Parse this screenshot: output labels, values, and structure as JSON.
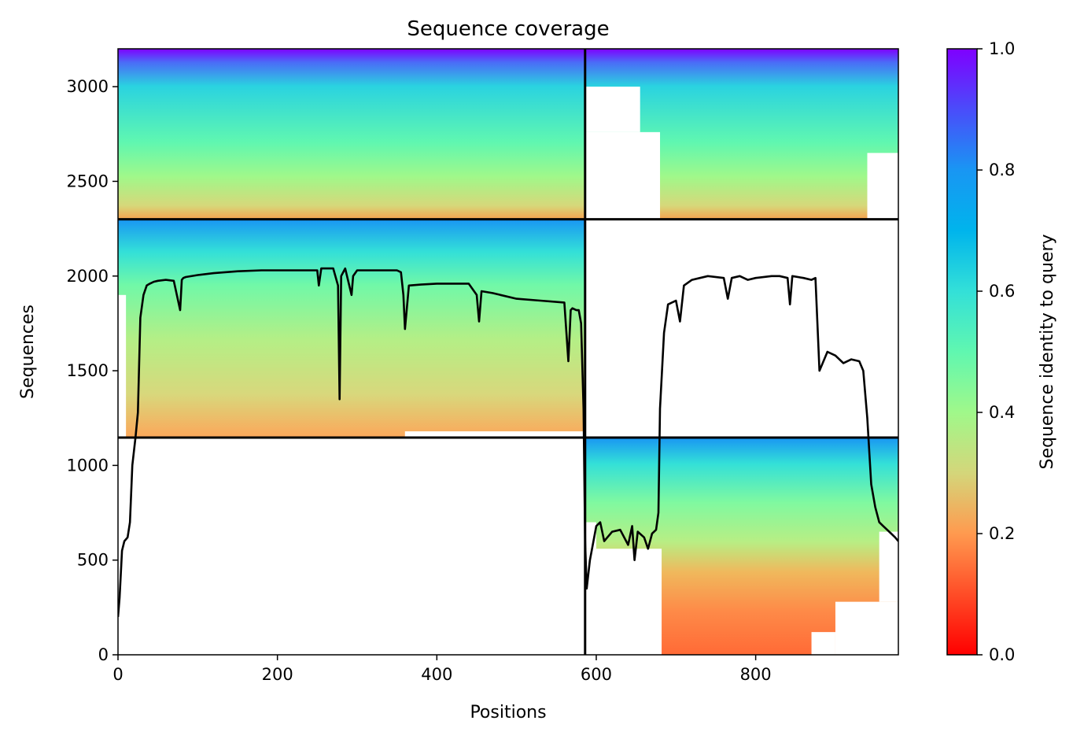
{
  "chart_data": {
    "type": "heatmap",
    "title": "Sequence coverage",
    "xlabel": "Positions",
    "ylabel": "Sequences",
    "xlim": [
      0,
      979
    ],
    "ylim": [
      0,
      3200
    ],
    "x_ticks": [
      "0",
      "200",
      "400",
      "600",
      "800"
    ],
    "x_tick_values": [
      0,
      200,
      400,
      600,
      800
    ],
    "y_ticks": [
      "0",
      "500",
      "1000",
      "1500",
      "2000",
      "2500",
      "3000"
    ],
    "y_tick_values": [
      0,
      500,
      1000,
      1500,
      2000,
      2500,
      3000
    ],
    "colorbar": {
      "label": "Sequence identity to query",
      "range": [
        0.0,
        1.0
      ],
      "ticks": [
        "0.0",
        "0.2",
        "0.4",
        "0.6",
        "0.8",
        "1.0"
      ],
      "tick_values": [
        0.0,
        0.2,
        0.4,
        0.6,
        0.8,
        1.0
      ],
      "colormap": "rainbow_r"
    },
    "divider_positions": [
      586
    ],
    "divider_sequences": [
      1147,
      2300
    ],
    "blocks": [
      {
        "x": [
          0,
          586
        ],
        "y": [
          2300,
          3200
        ],
        "identity_top": 1.0,
        "identity_bottom": 0.25
      },
      {
        "x": [
          586,
          979
        ],
        "y": [
          2300,
          3200
        ],
        "identity_top": 1.0,
        "identity_bottom": 0.3
      },
      {
        "x": [
          0,
          586
        ],
        "y": [
          1147,
          2300
        ],
        "identity_top": 0.8,
        "identity_bottom": 0.22
      },
      {
        "x": [
          586,
          979
        ],
        "y": [
          0,
          1147
        ],
        "identity_top": 0.8,
        "identity_bottom": 0.15
      }
    ],
    "coverage_line": {
      "x": [
        0,
        2,
        5,
        8,
        12,
        15,
        18,
        22,
        25,
        28,
        32,
        36,
        40,
        45,
        50,
        60,
        70,
        78,
        80,
        82,
        85,
        100,
        120,
        150,
        180,
        200,
        220,
        250,
        252,
        255,
        270,
        276,
        278,
        280,
        285,
        293,
        295,
        300,
        320,
        350,
        355,
        358,
        360,
        365,
        380,
        400,
        440,
        450,
        453,
        456,
        470,
        500,
        530,
        560,
        565,
        568,
        570,
        575,
        578,
        581,
        584,
        586,
        588,
        592,
        600,
        605,
        610,
        620,
        630,
        640,
        645,
        648,
        652,
        660,
        665,
        670,
        675,
        678,
        680,
        685,
        690,
        700,
        705,
        710,
        720,
        740,
        760,
        765,
        770,
        780,
        790,
        800,
        820,
        830,
        840,
        843,
        846,
        860,
        870,
        875,
        880,
        885,
        890,
        900,
        910,
        920,
        930,
        935,
        940,
        945,
        950,
        955,
        960,
        965,
        970,
        975,
        979
      ],
      "y": [
        200,
        300,
        550,
        600,
        620,
        700,
        1000,
        1150,
        1280,
        1780,
        1900,
        1950,
        1960,
        1970,
        1975,
        1980,
        1975,
        1820,
        1980,
        1990,
        1995,
        2005,
        2015,
        2025,
        2030,
        2030,
        2030,
        2030,
        1950,
        2040,
        2040,
        1950,
        1350,
        2000,
        2040,
        1900,
        2000,
        2030,
        2030,
        2030,
        2020,
        1900,
        1720,
        1950,
        1955,
        1960,
        1960,
        1900,
        1760,
        1920,
        1910,
        1880,
        1870,
        1860,
        1550,
        1820,
        1830,
        1820,
        1820,
        1750,
        1300,
        600,
        350,
        500,
        680,
        700,
        600,
        650,
        660,
        580,
        680,
        500,
        650,
        620,
        560,
        640,
        660,
        750,
        1300,
        1700,
        1850,
        1870,
        1760,
        1950,
        1980,
        2000,
        1990,
        1880,
        1990,
        2000,
        1980,
        1990,
        2000,
        2000,
        1990,
        1850,
        2000,
        1990,
        1980,
        1990,
        1500,
        1550,
        1600,
        1580,
        1540,
        1560,
        1550,
        1500,
        1250,
        900,
        780,
        700,
        680,
        660,
        640,
        620,
        600
      ]
    }
  }
}
